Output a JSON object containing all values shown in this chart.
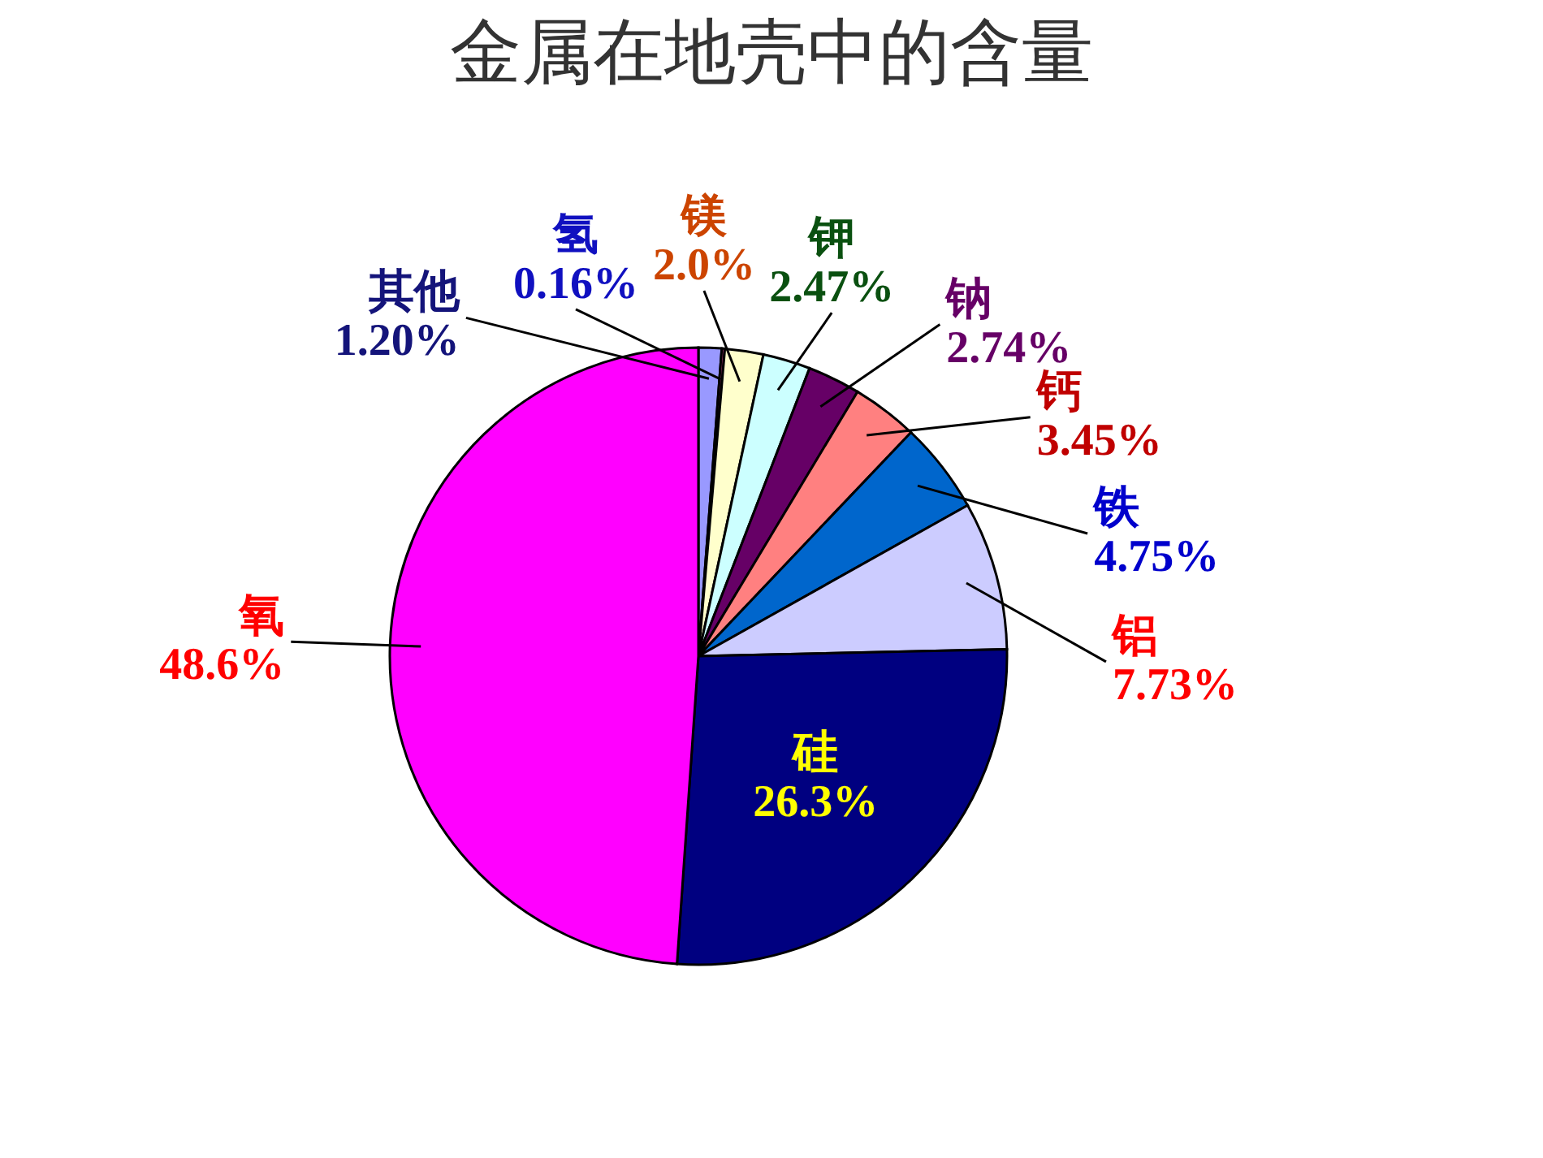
{
  "chart_data": {
    "type": "pie",
    "title": "金属在地壳中的含量",
    "categories": [
      "其他",
      "氢",
      "镁",
      "钾",
      "钠",
      "钙",
      "铁",
      "铝",
      "硅",
      "氧"
    ],
    "values": [
      1.2,
      0.16,
      2.0,
      2.47,
      2.74,
      3.45,
      4.75,
      7.73,
      26.3,
      48.6
    ],
    "colors": [
      "#9999ff",
      "#993366",
      "#ffffcc",
      "#ccffff",
      "#660066",
      "#ff8080",
      "#0066cc",
      "#ccccff",
      "#000080",
      "#ff00ff"
    ],
    "value_labels": [
      "1.20%",
      "0.16%",
      "2.0%",
      "2.47%",
      "2.74%",
      "3.45%",
      "4.75%",
      "7.73%",
      "26.3%",
      "48.6%"
    ]
  }
}
